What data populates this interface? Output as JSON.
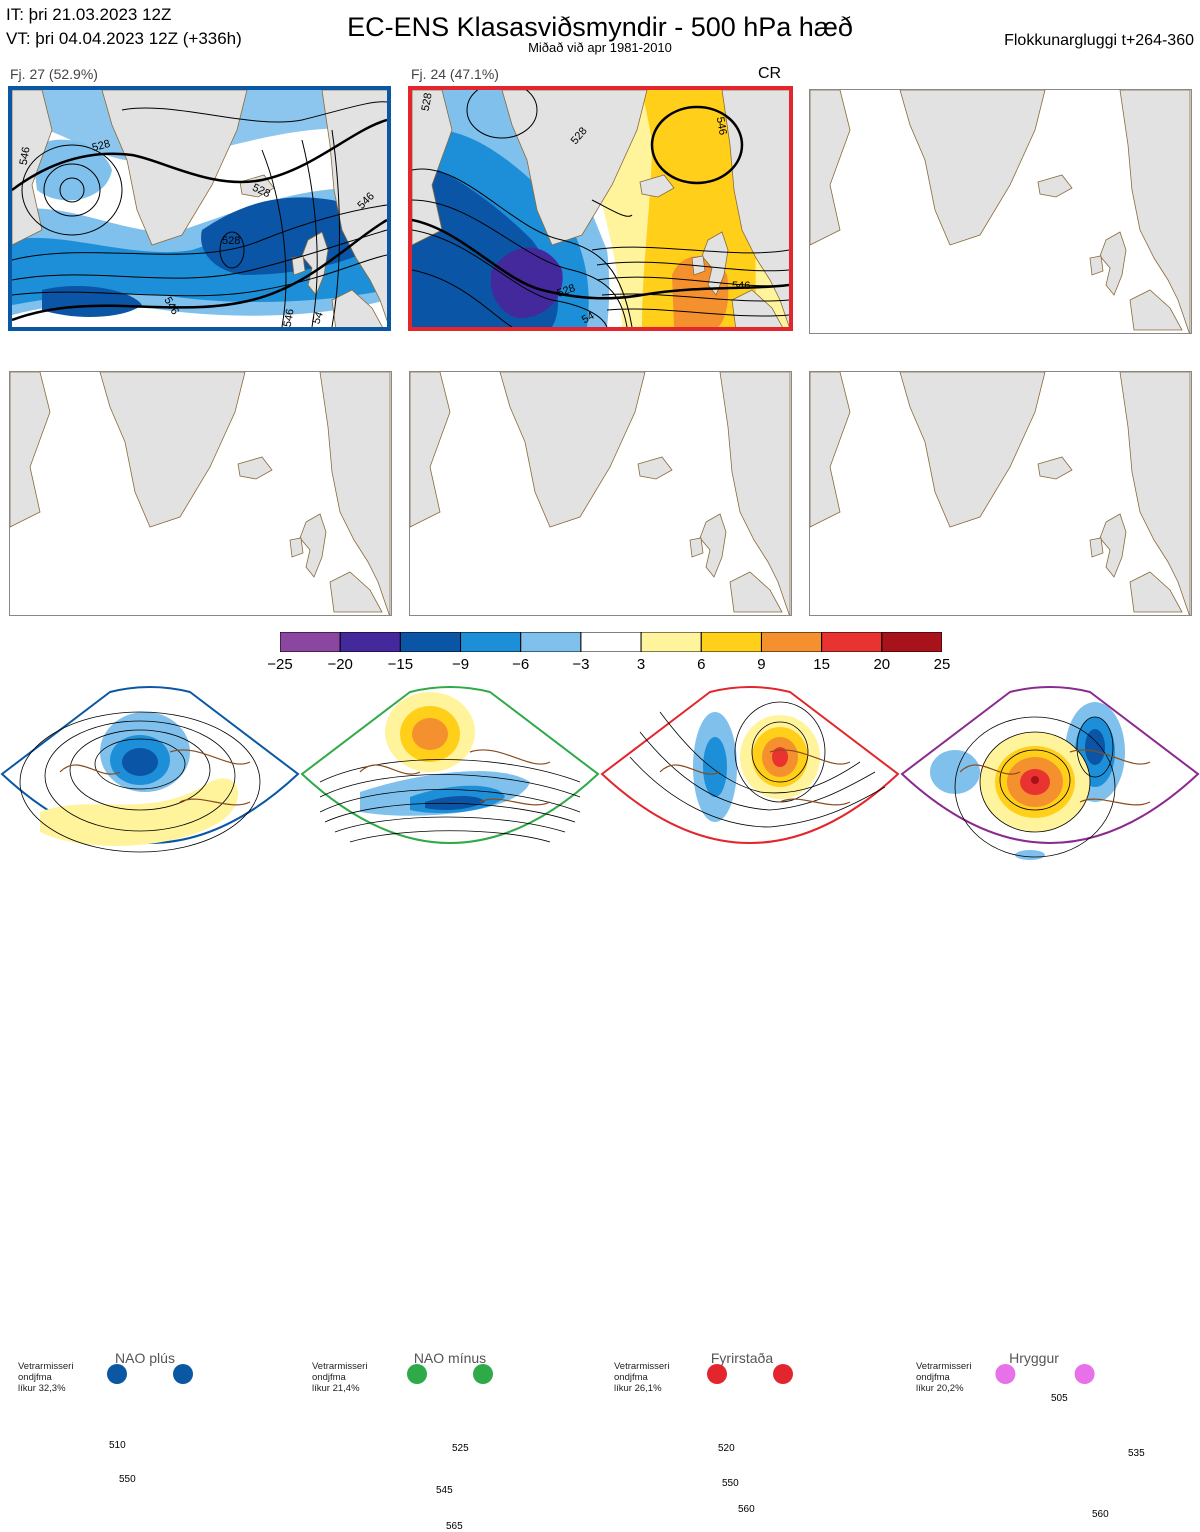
{
  "header": {
    "it_line": "IT: þri 21.03.2023 12Z",
    "vt_line": "VT: þri 04.04.2023 12Z  (+336h)",
    "title": "EC-ENS Klasasviðsmyndir - 500 hPa hæð",
    "subtitle": "Miðað við apr 1981-2010",
    "window": "Flokkunargluggi t+264-360"
  },
  "clusters": [
    {
      "label": "Fj. 27 (52.9%)",
      "members": 27,
      "percent": 52.9,
      "regime_code": "",
      "color": "#0a57a3"
    },
    {
      "label": "Fj. 24 (47.1%)",
      "members": 24,
      "percent": 47.1,
      "regime_code": "CR",
      "color": "#e3262d"
    }
  ],
  "contour_labels": {
    "cluster1": [
      "528",
      "546",
      "528",
      "546",
      "528",
      "546",
      "54",
      "546"
    ],
    "cluster2": [
      "528",
      "546",
      "528",
      "546",
      "528",
      "54"
    ]
  },
  "chart_data": {
    "type": "heatmap",
    "title": "EC-ENS Klasasviðsmyndir - 500 hPa hæð",
    "colorbar_ticks": [
      -25,
      -20,
      -15,
      -9,
      -6,
      -3,
      3,
      6,
      9,
      15,
      20,
      25
    ],
    "colorbar_colors": [
      "#8a46a0",
      "#43299b",
      "#0b55a6",
      "#1d8fd8",
      "#7fc0ec",
      "#ffffff",
      "#fff39c",
      "#ffcf1a",
      "#f5902e",
      "#e83330",
      "#a8121a"
    ]
  },
  "regimes": [
    {
      "name": "NAO plús",
      "prob_text": "Vetrarmisseri\nondjfma\nlíkur 32,3%",
      "probability": 32.3,
      "color": "#0a57a3",
      "dot_color": "#0a57a3",
      "contours": [
        "510",
        "550"
      ]
    },
    {
      "name": "NAO mínus",
      "prob_text": "Vetrarmisseri\nondjfma\nlíkur 21,4%",
      "probability": 21.4,
      "color": "#2eaa48",
      "dot_color": "#2eaa48",
      "contours": [
        "525",
        "545",
        "565"
      ]
    },
    {
      "name": "Fyrirstaða",
      "prob_text": "Vetrarmisseri\nondjfma\nlíkur 26,1%",
      "probability": 26.1,
      "color": "#e3262d",
      "dot_color": "#e3262d",
      "contours": [
        "520",
        "550",
        "560"
      ]
    },
    {
      "name": "Hryggur",
      "prob_text": "Vetrarmisseri\nondjfma\nlíkur 20,2%",
      "probability": 20.2,
      "color": "#8a2a8f",
      "dot_color": "#e870e8",
      "contours": [
        "505",
        "535",
        "560"
      ]
    }
  ]
}
